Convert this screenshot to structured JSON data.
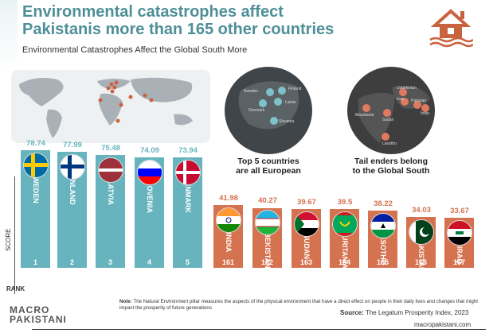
{
  "header": {
    "title_line1": "Environmental catastrophes affect",
    "title_line2": "Pakistanis more than 165 other countries",
    "subtitle": "Environmental Catastrophes Affect the Global South More"
  },
  "captions": {
    "left_line1": "Top 5 countries",
    "left_line2": "are all European",
    "right_line1": "Tail enders belong",
    "right_line2": "to the Global South"
  },
  "map_left_labels": [
    "Sweden",
    "Finland",
    "Latvia",
    "Denmark",
    "Slovenia"
  ],
  "map_right_labels": [
    "Uzbekistan",
    "Iraq",
    "Pakistan",
    "India",
    "Mauritania",
    "Sudan",
    "Lesotho"
  ],
  "axis": {
    "score": "SCORE",
    "rank": "RANK"
  },
  "colors": {
    "top": "#67b4bf",
    "bottom": "#d5724f",
    "title": "#4e8f98"
  },
  "chart_data": {
    "type": "bar",
    "categories": [
      "SWEDEN",
      "FINLAND",
      "LATVIA",
      "SLOVENIA",
      "DENMARK",
      "INDIA",
      "UZBEKISTAN",
      "SUDAN",
      "MAURITANIA",
      "LESOTHO",
      "PAKISTAN",
      "IRAQ"
    ],
    "values": [
      78.74,
      77.99,
      75.48,
      74.09,
      73.94,
      41.98,
      40.27,
      39.67,
      39.5,
      38.22,
      34.03,
      33.67
    ],
    "value_labels": [
      "78.74",
      "77.99",
      "75.48",
      "74.09",
      "73.94",
      "41.98",
      "40.27",
      "39.67",
      "39.5",
      "38.22",
      "34.03",
      "33.67"
    ],
    "ranks": [
      "1",
      "2",
      "3",
      "4",
      "5",
      "161",
      "162",
      "163",
      "164",
      "165",
      "166",
      "167"
    ],
    "groups": [
      "top",
      "top",
      "top",
      "top",
      "top",
      "bottom",
      "bottom",
      "bottom",
      "bottom",
      "bottom",
      "bottom",
      "bottom"
    ],
    "flags": [
      "sweden-flag",
      "finland-flag",
      "latvia-flag",
      "slovenia-flag",
      "denmark-flag",
      "india-flag",
      "uzbekistan-flag",
      "sudan-flag",
      "mauritania-flag",
      "lesotho-flag",
      "pakistan-flag",
      "iraq-flag"
    ],
    "xlabel": "RANK",
    "ylabel": "SCORE",
    "ylim": [
      0,
      80
    ]
  },
  "footer": {
    "logo_line1": "MACRO",
    "logo_line2": "PAKISTANI",
    "note_bold": "Note:",
    "note": " The Natural Environment pillar measures the aspects of the physical environment that have a direct effect on people in their daily lives and changes that might impact the prosperity of future generations",
    "source_bold": "Source:",
    "source": " The Legatum Prosperity Index, 2023",
    "site": "macropakistani.com"
  }
}
